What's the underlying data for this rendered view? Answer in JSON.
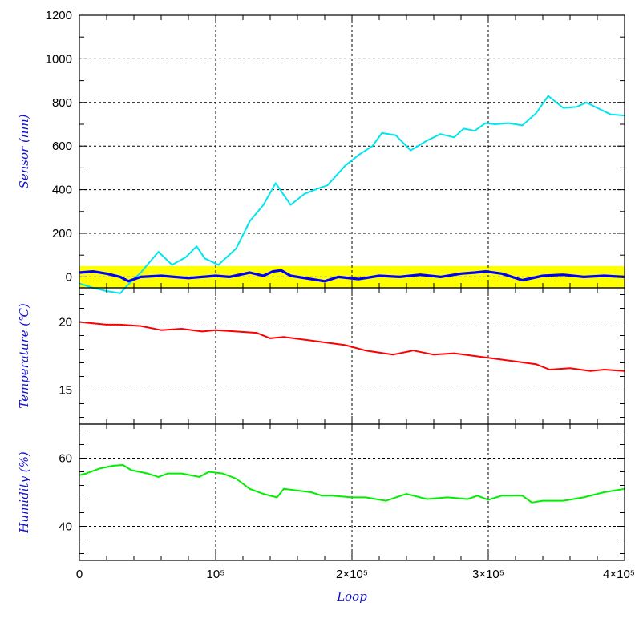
{
  "chart_data": [
    {
      "type": "line",
      "ylabel": "Sensor (nm)",
      "ylim": [
        -50,
        1200
      ],
      "yticks": [
        0,
        200,
        400,
        600,
        800,
        1000,
        1200
      ],
      "xlim": [
        0,
        400000
      ],
      "band": {
        "range": [
          -50,
          50
        ],
        "color": "#ffff00"
      },
      "grid": true,
      "series": [
        {
          "color": "#00e5ee",
          "x": [
            0,
            10000,
            20000,
            30000,
            35000,
            45000,
            58000,
            68000,
            78000,
            86000,
            92000,
            102000,
            115000,
            125000,
            135000,
            144000,
            155000,
            165000,
            175000,
            182000,
            195000,
            205000,
            215000,
            222000,
            232000,
            243000,
            255000,
            265000,
            275000,
            282000,
            290000,
            298000,
            305000,
            315000,
            325000,
            335000,
            344000,
            355000,
            365000,
            372000,
            380000,
            390000,
            400000
          ],
          "y": [
            -30,
            -50,
            -65,
            -75,
            -40,
            20,
            115,
            55,
            90,
            140,
            85,
            55,
            130,
            255,
            330,
            430,
            330,
            380,
            405,
            420,
            510,
            560,
            600,
            660,
            650,
            580,
            625,
            655,
            640,
            680,
            670,
            705,
            700,
            705,
            695,
            750,
            830,
            775,
            780,
            800,
            775,
            745,
            740
          ]
        },
        {
          "color": "#0000ff",
          "x": [
            0,
            10000,
            20000,
            30000,
            36000,
            45000,
            60000,
            80000,
            100000,
            110000,
            125000,
            135000,
            142000,
            148000,
            155000,
            170000,
            180000,
            190000,
            205000,
            220000,
            235000,
            250000,
            265000,
            280000,
            290000,
            298000,
            310000,
            325000,
            340000,
            355000,
            370000,
            385000,
            400000
          ],
          "y": [
            20,
            25,
            15,
            0,
            -20,
            0,
            5,
            -5,
            5,
            0,
            20,
            5,
            25,
            30,
            5,
            -10,
            -20,
            0,
            -10,
            5,
            0,
            10,
            0,
            15,
            20,
            25,
            15,
            -15,
            5,
            10,
            0,
            5,
            0
          ]
        }
      ]
    },
    {
      "type": "line",
      "ylabel": "Temperature (℃)",
      "ylim": [
        12.5,
        22.5
      ],
      "yticks": [
        15,
        20
      ],
      "xlim": [
        0,
        400000
      ],
      "grid": true,
      "series": [
        {
          "color": "#ff0000",
          "x": [
            0,
            10000,
            20000,
            30000,
            45000,
            60000,
            75000,
            90000,
            100000,
            115000,
            130000,
            140000,
            150000,
            165000,
            180000,
            195000,
            210000,
            230000,
            245000,
            260000,
            275000,
            290000,
            305000,
            320000,
            335000,
            345000,
            360000,
            375000,
            385000,
            400000
          ],
          "y": [
            20.0,
            19.9,
            19.8,
            19.8,
            19.7,
            19.4,
            19.5,
            19.3,
            19.4,
            19.3,
            19.2,
            18.8,
            18.9,
            18.7,
            18.5,
            18.3,
            17.9,
            17.6,
            17.9,
            17.6,
            17.7,
            17.5,
            17.3,
            17.1,
            16.9,
            16.5,
            16.6,
            16.4,
            16.5,
            16.4
          ]
        }
      ]
    },
    {
      "type": "line",
      "ylabel": "Humidity (%)",
      "ylim": [
        30,
        70
      ],
      "yticks": [
        40,
        60
      ],
      "xlim": [
        0,
        400000
      ],
      "xlabel": "Loop",
      "xticks": [
        0,
        100000,
        200000,
        300000,
        400000
      ],
      "xtick_labels": [
        "0",
        "10⁵",
        "2×10⁵",
        "3×10⁵",
        "4×10⁵"
      ],
      "grid": true,
      "series": [
        {
          "color": "#00ee00",
          "x": [
            0,
            5000,
            15000,
            25000,
            32000,
            38000,
            50000,
            58000,
            65000,
            75000,
            88000,
            95000,
            105000,
            115000,
            125000,
            135000,
            145000,
            150000,
            160000,
            170000,
            178000,
            185000,
            200000,
            210000,
            225000,
            240000,
            255000,
            270000,
            285000,
            292000,
            300000,
            310000,
            325000,
            332000,
            340000,
            355000,
            370000,
            385000,
            400000
          ],
          "y": [
            55.0,
            55.5,
            57.0,
            57.8,
            58.0,
            56.5,
            55.5,
            54.5,
            55.5,
            55.5,
            54.5,
            56.0,
            55.5,
            54.0,
            51.0,
            49.5,
            48.5,
            51.0,
            50.5,
            50.0,
            49.0,
            49.0,
            48.5,
            48.5,
            47.5,
            49.5,
            48.0,
            48.5,
            48.0,
            49.0,
            47.8,
            49.0,
            49.0,
            47.0,
            47.5,
            47.5,
            48.5,
            50.0,
            51.0
          ]
        }
      ]
    }
  ]
}
